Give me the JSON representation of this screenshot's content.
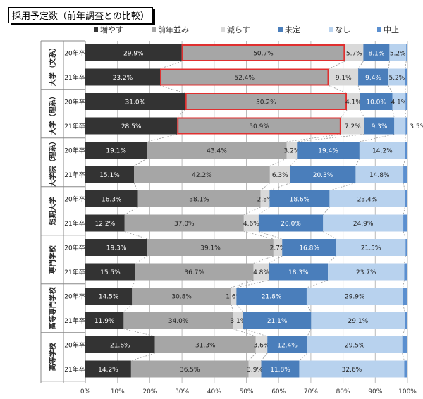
{
  "chart_data": {
    "type": "bar",
    "orientation": "horizontal-stacked-100",
    "title": "採用予定数（前年調査との比較）",
    "legend": [
      "増やす",
      "前年並み",
      "減らす",
      "未定",
      "なし",
      "中止"
    ],
    "legend_position": "top",
    "colors": [
      "#333333",
      "#a6a6a6",
      "#d9d9d9",
      "#4a7ebb",
      "#b8d2ee",
      "#5b8fcf"
    ],
    "highlight_color": "#e03030",
    "xlim": [
      0,
      100
    ],
    "x_ticks": [
      "0%",
      "10%",
      "20%",
      "30%",
      "40%",
      "50%",
      "60%",
      "70%",
      "80%",
      "90%",
      "100%"
    ],
    "groups": [
      {
        "name": "大学（文系）",
        "rows": [
          {
            "label": "20年卒",
            "values": [
              29.9,
              50.7,
              5.7,
              8.1,
              5.2,
              0.4
            ],
            "highlight": true
          },
          {
            "label": "21年卒",
            "values": [
              23.2,
              52.4,
              9.1,
              9.4,
              5.2,
              0.7
            ],
            "highlight": true
          }
        ]
      },
      {
        "name": "大学（理系）",
        "rows": [
          {
            "label": "20年卒",
            "values": [
              31.0,
              50.2,
              4.1,
              10.0,
              4.1,
              0.6
            ],
            "highlight": true
          },
          {
            "label": "21年卒",
            "values": [
              28.5,
              50.9,
              7.2,
              9.3,
              3.5,
              0.6
            ],
            "highlight": true
          }
        ]
      },
      {
        "name": "大学院（理系）",
        "rows": [
          {
            "label": "20年卒",
            "values": [
              19.1,
              43.4,
              3.2,
              19.4,
              14.2,
              0.7
            ]
          },
          {
            "label": "21年卒",
            "values": [
              15.1,
              42.2,
              6.3,
              20.3,
              14.8,
              1.3
            ]
          }
        ]
      },
      {
        "name": "短期大学",
        "rows": [
          {
            "label": "20年卒",
            "values": [
              16.3,
              38.1,
              2.8,
              18.6,
              23.4,
              0.8
            ]
          },
          {
            "label": "21年卒",
            "values": [
              12.2,
              37.0,
              4.6,
              20.0,
              24.9,
              1.3
            ]
          }
        ]
      },
      {
        "name": "専門学校",
        "rows": [
          {
            "label": "20年卒",
            "values": [
              19.3,
              39.1,
              2.7,
              16.8,
              21.5,
              0.6
            ]
          },
          {
            "label": "21年卒",
            "values": [
              15.5,
              36.7,
              4.8,
              18.3,
              23.7,
              1.0
            ]
          }
        ]
      },
      {
        "name": "高等専門学校",
        "rows": [
          {
            "label": "20年卒",
            "values": [
              14.5,
              30.8,
              1.6,
              21.8,
              29.9,
              1.4
            ]
          },
          {
            "label": "21年卒",
            "values": [
              11.9,
              34.0,
              3.1,
              21.1,
              29.1,
              0.8
            ]
          }
        ]
      },
      {
        "name": "高等学校",
        "rows": [
          {
            "label": "20年卒",
            "values": [
              21.6,
              31.3,
              3.6,
              12.4,
              29.5,
              1.6
            ]
          },
          {
            "label": "21年卒",
            "values": [
              14.2,
              36.5,
              3.9,
              11.8,
              32.6,
              1.0
            ]
          }
        ]
      }
    ]
  }
}
